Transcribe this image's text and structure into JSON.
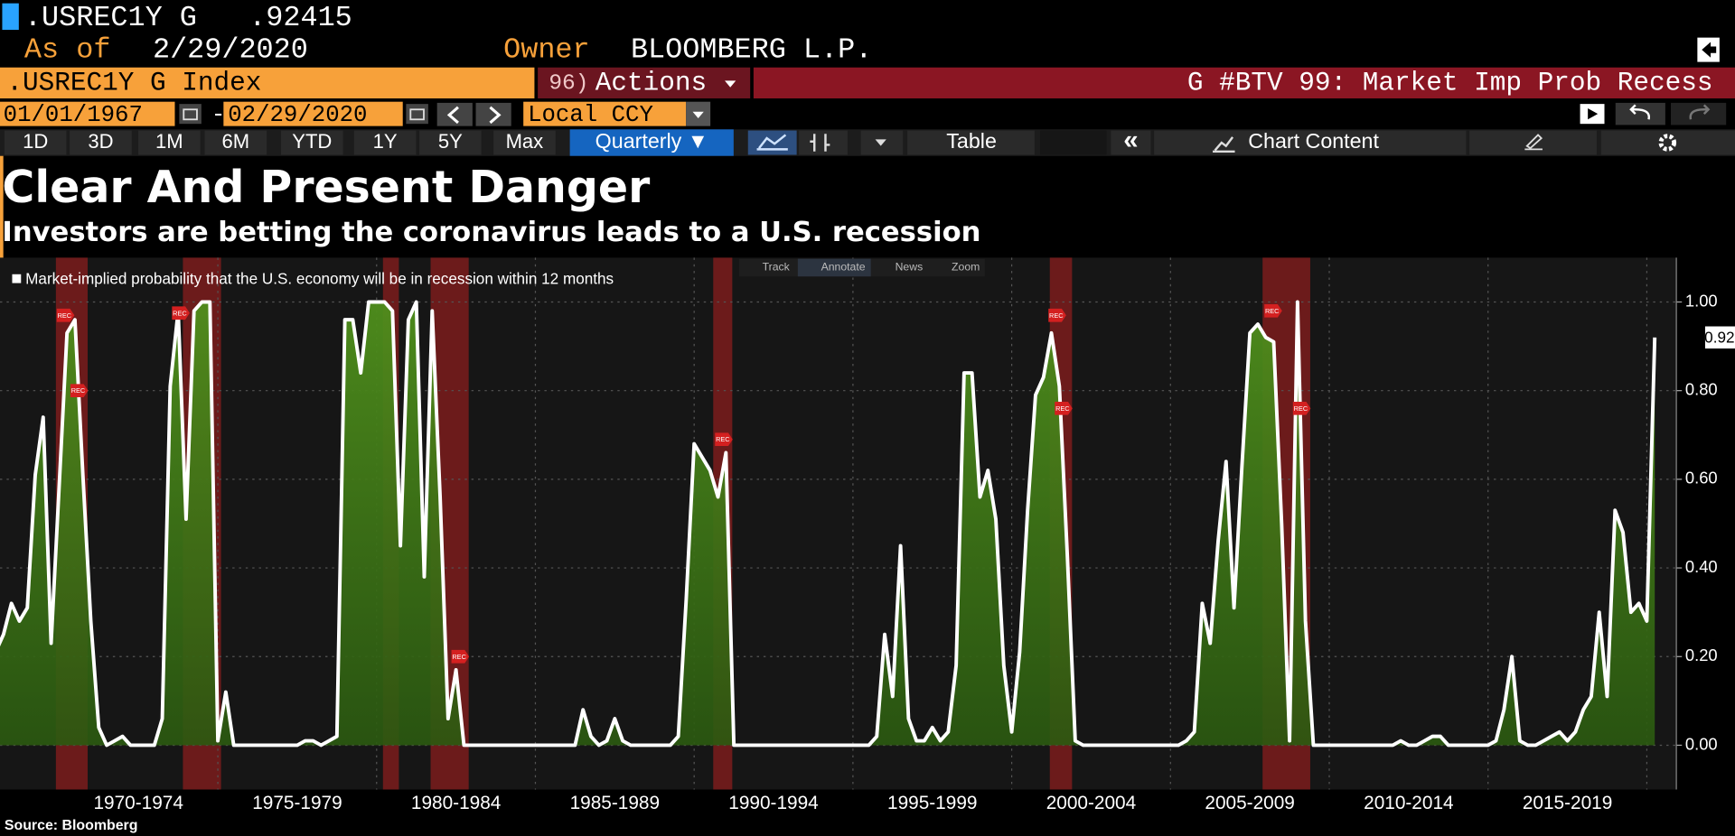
{
  "header": {
    "ticker_line": ".USREC1Y G   .92415",
    "as_of_label": "As of",
    "as_of_date": "2/29/2020",
    "owner_label": "Owner",
    "owner": "BLOOMBERG L.P.",
    "security": ".USREC1Y G Index",
    "actions_number": "96)",
    "actions": "Actions",
    "function_title": "G #BTV 99: Market Imp Prob Recess",
    "start_date": "01/01/1967",
    "date_separator": "-",
    "end_date": "02/29/2020",
    "currency": "Local CCY"
  },
  "toolbar": {
    "periods": [
      "1D",
      "3D",
      "1M",
      "6M",
      "YTD",
      "1Y",
      "5Y",
      "Max"
    ],
    "frequency": "Quarterly ▼",
    "table": "Table",
    "collapse": "«",
    "chart_content": "Chart Content"
  },
  "chart_tools": [
    "Track",
    "Annotate",
    "News",
    "Zoom"
  ],
  "source": "Source: Bloomberg",
  "chart_data": {
    "type": "area",
    "title": "Clear And Present Danger",
    "subtitle": "Investors are betting the coronavirus leads to a U.S. recession",
    "last_value_label": "0.92",
    "series": [
      {
        "name": "Market-implied probability that the U.S. economy will be in recession within 12 months",
        "color": "#ffffff",
        "fill": "#4f8f1c",
        "x": [
          1968,
          1968.25,
          1968.5,
          1968.75,
          1969,
          1969.25,
          1969.5,
          1969.75,
          1970,
          1970.25,
          1970.5,
          1970.75,
          1971,
          1971.25,
          1971.5,
          1971.75,
          1972,
          1972.25,
          1972.5,
          1972.75,
          1973,
          1973.25,
          1973.5,
          1973.75,
          1974,
          1974.25,
          1974.5,
          1974.75,
          1975,
          1975.25,
          1975.5,
          1975.75,
          1976,
          1976.25,
          1976.5,
          1976.75,
          1977,
          1977.25,
          1977.5,
          1977.75,
          1978,
          1978.25,
          1978.5,
          1978.75,
          1979,
          1979.25,
          1979.5,
          1979.75,
          1980,
          1980.25,
          1980.5,
          1980.75,
          1981,
          1981.25,
          1981.5,
          1981.75,
          1982,
          1982.25,
          1982.5,
          1982.75,
          1983,
          1983.25,
          1983.5,
          1983.75,
          1984,
          1984.25,
          1984.5,
          1984.75,
          1985,
          1985.25,
          1985.5,
          1985.75,
          1986,
          1986.25,
          1986.5,
          1986.75,
          1987,
          1987.25,
          1987.5,
          1987.75,
          1988,
          1988.25,
          1988.5,
          1988.75,
          1989,
          1989.25,
          1989.5,
          1989.75,
          1990,
          1990.25,
          1990.5,
          1990.75,
          1991,
          1991.25,
          1991.5,
          1991.75,
          1992,
          1992.25,
          1992.5,
          1992.75,
          1993,
          1993.25,
          1993.5,
          1993.75,
          1994,
          1994.25,
          1994.5,
          1994.75,
          1995,
          1995.25,
          1995.5,
          1995.75,
          1996,
          1996.25,
          1996.5,
          1996.75,
          1997,
          1997.25,
          1997.5,
          1997.75,
          1998,
          1998.25,
          1998.5,
          1998.75,
          1999,
          1999.25,
          1999.5,
          1999.75,
          2000,
          2000.25,
          2000.5,
          2000.75,
          2001,
          2001.25,
          2001.5,
          2001.75,
          2002,
          2002.25,
          2002.5,
          2002.75,
          2003,
          2003.25,
          2003.5,
          2003.75,
          2004,
          2004.25,
          2004.5,
          2004.75,
          2005,
          2005.25,
          2005.5,
          2005.75,
          2006,
          2006.25,
          2006.5,
          2006.75,
          2007,
          2007.25,
          2007.5,
          2007.75,
          2008,
          2008.25,
          2008.5,
          2008.75,
          2009,
          2009.25,
          2009.5,
          2009.75,
          2010,
          2010.25,
          2010.5,
          2010.75,
          2011,
          2011.25,
          2011.5,
          2011.75,
          2012,
          2012.25,
          2012.5,
          2012.75,
          2013,
          2013.25,
          2013.5,
          2013.75,
          2014,
          2014.25,
          2014.5,
          2014.75,
          2015,
          2015.25,
          2015.5,
          2015.75,
          2016,
          2016.25,
          2016.5,
          2016.75,
          2017,
          2017.25,
          2017.5,
          2017.75,
          2018,
          2018.25,
          2018.5,
          2018.75,
          2019,
          2019.25,
          2019.5,
          2019.75,
          2020,
          2020.25
        ],
        "values": [
          0.21,
          0.25,
          0.32,
          0.28,
          0.31,
          0.61,
          0.74,
          0.23,
          0.58,
          0.93,
          0.96,
          0.61,
          0.28,
          0.04,
          0,
          0.01,
          0.02,
          0,
          0,
          0,
          0,
          0.06,
          0.81,
          0.98,
          0.51,
          0.98,
          1,
          1,
          0.01,
          0.12,
          0,
          0,
          0,
          0,
          0,
          0,
          0,
          0,
          0,
          0.01,
          0.01,
          0,
          0.01,
          0.02,
          0.96,
          0.96,
          0.84,
          1,
          1,
          1,
          0.98,
          0.45,
          0.96,
          1,
          0.38,
          0.98,
          0.56,
          0.06,
          0.17,
          0,
          0,
          0,
          0,
          0,
          0,
          0,
          0,
          0,
          0,
          0,
          0,
          0,
          0,
          0,
          0.08,
          0.02,
          0,
          0.01,
          0.06,
          0.01,
          0,
          0,
          0,
          0,
          0,
          0,
          0.02,
          0.33,
          0.68,
          0.65,
          0.62,
          0.56,
          0.66,
          0,
          0,
          0,
          0,
          0,
          0,
          0,
          0,
          0,
          0,
          0,
          0,
          0,
          0,
          0,
          0,
          0,
          0,
          0.02,
          0.25,
          0.11,
          0.45,
          0.06,
          0.01,
          0.01,
          0.04,
          0.01,
          0.03,
          0.18,
          0.84,
          0.84,
          0.56,
          0.62,
          0.51,
          0.18,
          0.03,
          0.21,
          0.53,
          0.79,
          0.83,
          0.93,
          0.81,
          0.43,
          0.01,
          0,
          0,
          0,
          0,
          0,
          0,
          0,
          0,
          0,
          0,
          0,
          0,
          0,
          0.01,
          0.03,
          0.32,
          0.23,
          0.46,
          0.64,
          0.31,
          0.63,
          0.93,
          0.95,
          0.92,
          0.91,
          0.5,
          0.01,
          1,
          0.28,
          0,
          0,
          0,
          0,
          0,
          0,
          0,
          0,
          0,
          0,
          0,
          0.01,
          0,
          0,
          0.01,
          0.02,
          0.02,
          0,
          0,
          0,
          0,
          0,
          0,
          0.01,
          0.08,
          0.2,
          0.01,
          0,
          0,
          0.01,
          0.02,
          0.03,
          0.01,
          0.03,
          0.08,
          0.11,
          0.3,
          0.11,
          0.53,
          0.48,
          0.3,
          0.32,
          0.28,
          0.92
        ]
      }
    ],
    "recessions": [
      [
        1969.9,
        1970.9
      ],
      [
        1973.9,
        1975.1
      ],
      [
        1980.2,
        1980.7
      ],
      [
        1981.7,
        1982.9
      ],
      [
        1990.6,
        1991.2
      ],
      [
        2001.2,
        2001.9
      ],
      [
        2007.9,
        2009.4
      ]
    ],
    "recession_color": "#8a1e1e",
    "annotations": [
      {
        "x": 1970.17,
        "y": 0.97,
        "label": "REC"
      },
      {
        "x": 1970.6,
        "y": 0.8,
        "label": "REC"
      },
      {
        "x": 1973.8,
        "y": 0.975,
        "label": "REC"
      },
      {
        "x": 1982.6,
        "y": 0.2,
        "label": "REC"
      },
      {
        "x": 1990.9,
        "y": 0.69,
        "label": "REC"
      },
      {
        "x": 2001.4,
        "y": 0.97,
        "label": "REC"
      },
      {
        "x": 2001.6,
        "y": 0.76,
        "label": "REC"
      },
      {
        "x": 2008.2,
        "y": 0.98,
        "label": "REC"
      },
      {
        "x": 2009.1,
        "y": 0.76,
        "label": "REC"
      }
    ],
    "xlim": [
      1968.14,
      2020.93
    ],
    "ylim": [
      -0.1,
      1.1
    ],
    "xticks": [
      {
        "value": 1972.5,
        "label": "1970-1974"
      },
      {
        "value": 1977.5,
        "label": "1975-1979"
      },
      {
        "value": 1982.5,
        "label": "1980-1984"
      },
      {
        "value": 1987.5,
        "label": "1985-1989"
      },
      {
        "value": 1992.5,
        "label": "1990-1994"
      },
      {
        "value": 1997.5,
        "label": "1995-1999"
      },
      {
        "value": 2002.5,
        "label": "2000-2004"
      },
      {
        "value": 2007.5,
        "label": "2005-2009"
      },
      {
        "value": 2012.5,
        "label": "2010-2014"
      },
      {
        "value": 2017.5,
        "label": "2015-2019"
      }
    ],
    "xgrid": [
      1975,
      1980,
      1985,
      1990,
      1995,
      2000,
      2005,
      2010,
      2015,
      2020
    ],
    "yticks": [
      {
        "value": 0,
        "label": "0.00"
      },
      {
        "value": 0.2,
        "label": "0.20"
      },
      {
        "value": 0.4,
        "label": "0.40"
      },
      {
        "value": 0.6,
        "label": "0.60"
      },
      {
        "value": 0.8,
        "label": "0.80"
      },
      {
        "value": 1,
        "label": "1.00"
      }
    ],
    "grid": true
  }
}
